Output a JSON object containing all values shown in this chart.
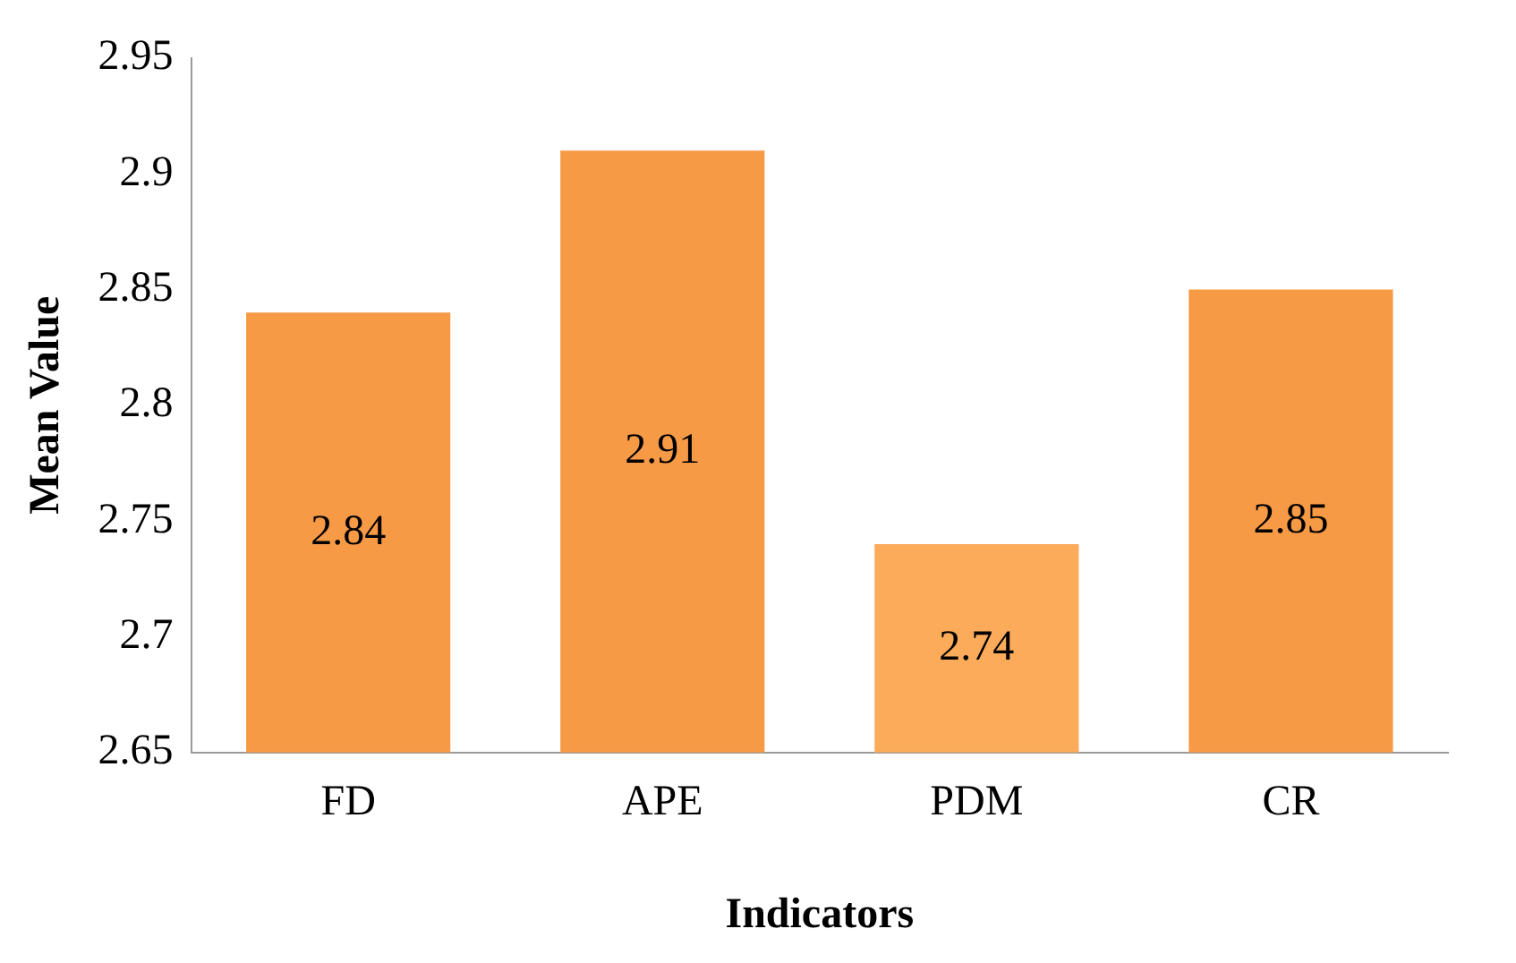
{
  "chart_data": {
    "type": "bar",
    "xlabel": "Indicators",
    "ylabel": "Mean Value",
    "categories": [
      "FD",
      "APE",
      "PDM",
      "CR"
    ],
    "values": [
      2.84,
      2.91,
      2.74,
      2.85
    ],
    "colors": [
      "#f79a46",
      "#f79a46",
      "#fbab5a",
      "#f79a46"
    ],
    "ylim": [
      2.65,
      2.95
    ],
    "yticks": [
      2.65,
      2.7,
      2.75,
      2.8,
      2.85,
      2.9,
      2.95
    ],
    "data_labels": true
  }
}
